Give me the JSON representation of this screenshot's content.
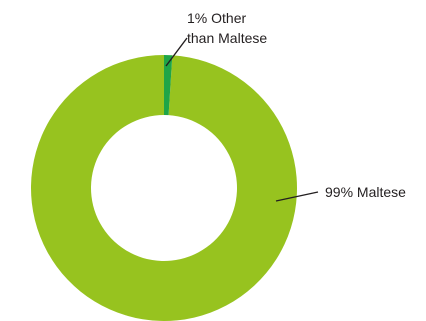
{
  "chart_data": {
    "type": "pie",
    "donut": true,
    "slices": [
      {
        "label_lines": [
          "99% Maltese"
        ],
        "value": 99,
        "color": "#97c31f"
      },
      {
        "label_lines": [
          "1% Other",
          "than Maltese"
        ],
        "value": 1,
        "color": "#1fa548"
      }
    ],
    "start_angle_deg": 0,
    "direction": "clockwise",
    "legend": "none"
  }
}
